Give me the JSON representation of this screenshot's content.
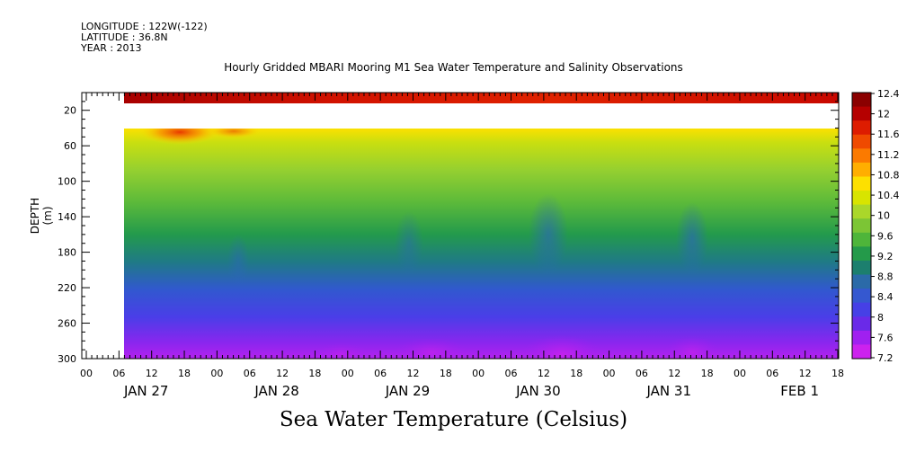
{
  "header": {
    "longitude": "LONGITUDE : 122W(-122)",
    "latitude": "LATITUDE : 36.8N",
    "year": "YEAR : 2013"
  },
  "title": "Hourly Gridded MBARI Mooring M1 Sea Water Temperature and Salinity Observations",
  "variable_title": "Sea Water Temperature (Celsius)",
  "chart_data": {
    "type": "heatmap",
    "title": "Hourly Gridded MBARI Mooring M1 Sea Water Temperature and Salinity Observations",
    "xlabel": "",
    "ylabel": "DEPTH (m)",
    "colorbar_label": "Sea Water Temperature (Celsius)",
    "y_reversed": true,
    "ylim": [
      0,
      300
    ],
    "y_ticks": [
      20,
      60,
      100,
      140,
      180,
      220,
      260,
      300
    ],
    "x_hour_ticks": [
      "00",
      "06",
      "12",
      "18",
      "00",
      "06",
      "12",
      "18",
      "00",
      "06",
      "12",
      "18",
      "00",
      "06",
      "12",
      "18",
      "00",
      "06",
      "12",
      "18",
      "00",
      "06",
      "12",
      "18"
    ],
    "x_day_labels": [
      "JAN 27",
      "JAN 28",
      "JAN 29",
      "JAN 30",
      "JAN 31",
      "FEB  1"
    ],
    "x_start_hour": "07",
    "colorbar_levels": [
      12.4,
      12,
      11.6,
      11.2,
      10.8,
      10.4,
      10,
      9.6,
      9.2,
      8.8,
      8.4,
      8,
      7.6,
      7.2
    ],
    "colorbar_colors": [
      "#8b0000",
      "#b50000",
      "#dd1c00",
      "#ef4a00",
      "#fb7a00",
      "#ffae00",
      "#fde000",
      "#d8e400",
      "#aad72a",
      "#7cc535",
      "#4eb53a",
      "#249a4a",
      "#1c7f6e",
      "#2b6aa8",
      "#3558d0",
      "#4640e6",
      "#6a2ae8",
      "#a020f0",
      "#cc22ee"
    ],
    "depth_profile_approx": [
      {
        "depth": 15,
        "temperature": 12.2
      },
      {
        "depth": 45,
        "temperature": 10.6
      },
      {
        "depth": 60,
        "temperature": 10.1
      },
      {
        "depth": 80,
        "temperature": 9.8
      },
      {
        "depth": 100,
        "temperature": 9.5
      },
      {
        "depth": 140,
        "temperature": 9.0
      },
      {
        "depth": 180,
        "temperature": 8.6
      },
      {
        "depth": 220,
        "temperature": 8.1
      },
      {
        "depth": 260,
        "temperature": 7.8
      },
      {
        "depth": 300,
        "temperature": 7.4
      }
    ],
    "no_data_depth_range": [
      20,
      40
    ]
  }
}
